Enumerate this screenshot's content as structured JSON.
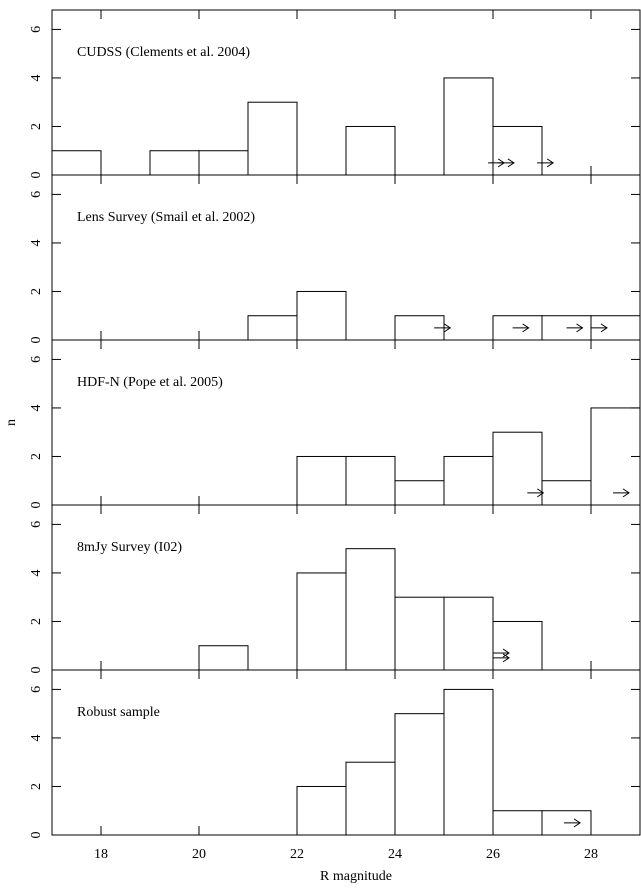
{
  "chart_data": [
    {
      "type": "histogram",
      "title": "CUDSS (Clements et al. 2004)",
      "bins": [
        17,
        18,
        19,
        20,
        21,
        22,
        23,
        24,
        25,
        26,
        27,
        28,
        29
      ],
      "values": [
        1,
        0,
        1,
        1,
        3,
        0,
        2,
        0,
        4,
        2,
        0,
        0
      ],
      "xlim": [
        17,
        29
      ],
      "xticks": [
        18,
        20,
        22,
        24,
        26,
        28
      ],
      "ylim": [
        0,
        6.8
      ],
      "yticks": [
        0,
        2,
        4,
        6
      ],
      "lower_limits": {
        "x": [
          25.9,
          26.1,
          26.9
        ],
        "y": [
          0.5,
          0.5,
          0.5
        ]
      }
    },
    {
      "type": "histogram",
      "title": "Lens Survey (Smail et al. 2002)",
      "bins": [
        17,
        18,
        19,
        20,
        21,
        22,
        23,
        24,
        25,
        26,
        27,
        28,
        29
      ],
      "values": [
        0,
        0,
        0,
        0,
        1,
        2,
        0,
        1,
        0,
        1,
        1,
        1
      ],
      "xlim": [
        17,
        29
      ],
      "xticks": [
        18,
        20,
        22,
        24,
        26,
        28
      ],
      "ylim": [
        0,
        6.8
      ],
      "yticks": [
        0,
        2,
        4,
        6
      ],
      "lower_limits": {
        "x": [
          24.8,
          26.4,
          27.5,
          28.0
        ],
        "y": [
          0.5,
          0.5,
          0.5,
          0.5
        ]
      }
    },
    {
      "type": "histogram",
      "title": "HDF-N (Pope et al. 2005)",
      "ylabel": "n",
      "bins": [
        17,
        18,
        19,
        20,
        21,
        22,
        23,
        24,
        25,
        26,
        27,
        28,
        29
      ],
      "values": [
        0,
        0,
        0,
        0,
        0,
        2,
        2,
        1,
        2,
        3,
        1,
        4
      ],
      "xlim": [
        17,
        29
      ],
      "xticks": [
        18,
        20,
        22,
        24,
        26,
        28
      ],
      "ylim": [
        0,
        6.8
      ],
      "yticks": [
        0,
        2,
        4,
        6
      ],
      "lower_limits": {
        "x": [
          26.7,
          28.45
        ],
        "y": [
          0.5,
          0.5
        ]
      }
    },
    {
      "type": "histogram",
      "title": "8mJy Survey (I02)",
      "bins": [
        17,
        18,
        19,
        20,
        21,
        22,
        23,
        24,
        25,
        26,
        27,
        28,
        29
      ],
      "values": [
        0,
        0,
        0,
        1,
        0,
        4,
        5,
        3,
        3,
        2,
        0,
        0
      ],
      "xlim": [
        17,
        29
      ],
      "xticks": [
        18,
        20,
        22,
        24,
        26,
        28
      ],
      "ylim": [
        0,
        6.8
      ],
      "yticks": [
        0,
        2,
        4,
        6
      ],
      "lower_limits": {
        "x": [
          26.0,
          26.0
        ],
        "y": [
          0.7,
          0.5
        ]
      }
    },
    {
      "type": "histogram",
      "title": "Robust sample",
      "xlabel": "R magnitude",
      "bins": [
        17,
        18,
        19,
        20,
        21,
        22,
        23,
        24,
        25,
        26,
        27,
        28,
        29
      ],
      "values": [
        0,
        0,
        0,
        0,
        0,
        2,
        3,
        5,
        6,
        1,
        1,
        0
      ],
      "xlim": [
        17,
        29
      ],
      "xticks": [
        18,
        20,
        22,
        24,
        26,
        28
      ],
      "ylim": [
        0,
        6.8
      ],
      "yticks": [
        0,
        2,
        4,
        6
      ],
      "lower_limits": {
        "x": [
          27.45
        ],
        "y": [
          0.5
        ]
      }
    }
  ]
}
